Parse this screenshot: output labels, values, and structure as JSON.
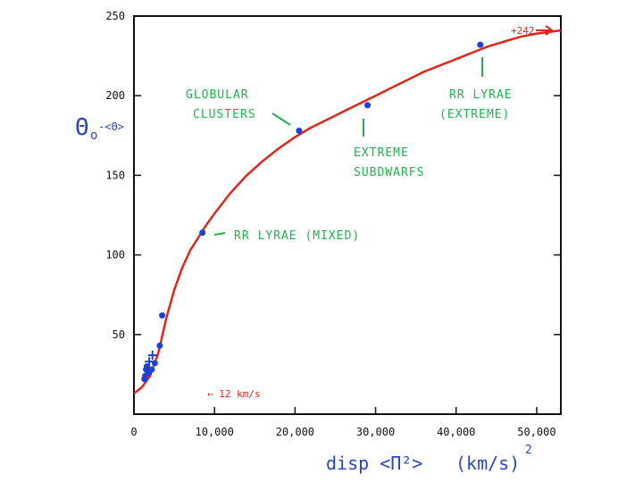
{
  "chart_data": {
    "type": "scatter",
    "title": "",
    "xlabel": "disp <Π²>",
    "xunit": "(km/s)",
    "xunit_exp": "2",
    "ylabel_symbol": "Θ",
    "ylabel_sub": "o",
    "ylabel_tail": "-<Θ>",
    "xlim": [
      0,
      53000
    ],
    "ylim": [
      0,
      250
    ],
    "grid": false,
    "x_ticks": [
      {
        "value": 0,
        "label": "0"
      },
      {
        "value": 10000,
        "label": "10,000"
      },
      {
        "value": 20000,
        "label": "20,000"
      },
      {
        "value": 30000,
        "label": "30,000"
      },
      {
        "value": 40000,
        "label": "40,000"
      },
      {
        "value": 50000,
        "label": "50,000"
      }
    ],
    "y_ticks": [
      {
        "value": 50,
        "label": "50"
      },
      {
        "value": 100,
        "label": "100"
      },
      {
        "value": 150,
        "label": "150"
      },
      {
        "value": 200,
        "label": "200"
      },
      {
        "value": 250,
        "label": "250"
      }
    ],
    "points": [
      {
        "x": 1300,
        "y": 22
      },
      {
        "x": 1400,
        "y": 24
      },
      {
        "x": 1500,
        "y": 28
      },
      {
        "x": 1600,
        "y": 30
      },
      {
        "x": 1800,
        "y": 26
      },
      {
        "x": 2200,
        "y": 28
      },
      {
        "x": 2600,
        "y": 32
      },
      {
        "x": 3200,
        "y": 43
      },
      {
        "x": 3500,
        "y": 62
      },
      {
        "x": 8500,
        "y": 114
      },
      {
        "x": 20500,
        "y": 178
      },
      {
        "x": 29000,
        "y": 194
      },
      {
        "x": 43000,
        "y": 232
      }
    ],
    "plus_markers": [
      {
        "x": 1900,
        "y": 33
      },
      {
        "x": 2300,
        "y": 37
      }
    ],
    "fit_curve": {
      "color": "#e0261b",
      "points": [
        [
          0,
          13
        ],
        [
          1000,
          17
        ],
        [
          2000,
          24
        ],
        [
          3000,
          38
        ],
        [
          4000,
          60
        ],
        [
          5000,
          78
        ],
        [
          6000,
          92
        ],
        [
          7000,
          103
        ],
        [
          8000,
          111
        ],
        [
          9000,
          119
        ],
        [
          10000,
          126
        ],
        [
          12000,
          139
        ],
        [
          14000,
          150
        ],
        [
          16000,
          159
        ],
        [
          18000,
          167
        ],
        [
          20000,
          174
        ],
        [
          22000,
          180
        ],
        [
          24000,
          185
        ],
        [
          26000,
          190
        ],
        [
          28000,
          195
        ],
        [
          30000,
          200
        ],
        [
          32000,
          205
        ],
        [
          34000,
          210
        ],
        [
          36000,
          215
        ],
        [
          38000,
          219
        ],
        [
          40000,
          223
        ],
        [
          42000,
          227
        ],
        [
          44000,
          231
        ],
        [
          46000,
          234
        ],
        [
          48000,
          237
        ],
        [
          50000,
          239
        ],
        [
          53000,
          241
        ]
      ]
    },
    "annotations": [
      {
        "lines": [
          "GLOBULAR",
          "CLUSTERS"
        ],
        "color": "#22b14c",
        "target": {
          "x": 20500,
          "y": 178
        }
      },
      {
        "lines": [
          "EXTREME",
          "SUBDWARFS"
        ],
        "color": "#22b14c",
        "target": {
          "x": 29000,
          "y": 194
        }
      },
      {
        "lines": [
          "RR LYRAE",
          "(EXTREME)"
        ],
        "color": "#22b14c",
        "target": {
          "x": 43000,
          "y": 232
        }
      },
      {
        "lines": [
          "RR LYRAE  (MIXED)"
        ],
        "color": "#22b14c",
        "target": {
          "x": 8500,
          "y": 114
        }
      }
    ],
    "arrow_labels": [
      {
        "text": "+242",
        "color": "#e0261b"
      },
      {
        "text": "← 12 km/s",
        "color": "#e0261b"
      }
    ],
    "point_color": "#1f3fd6",
    "axis_label_color": "#2a46b8"
  }
}
